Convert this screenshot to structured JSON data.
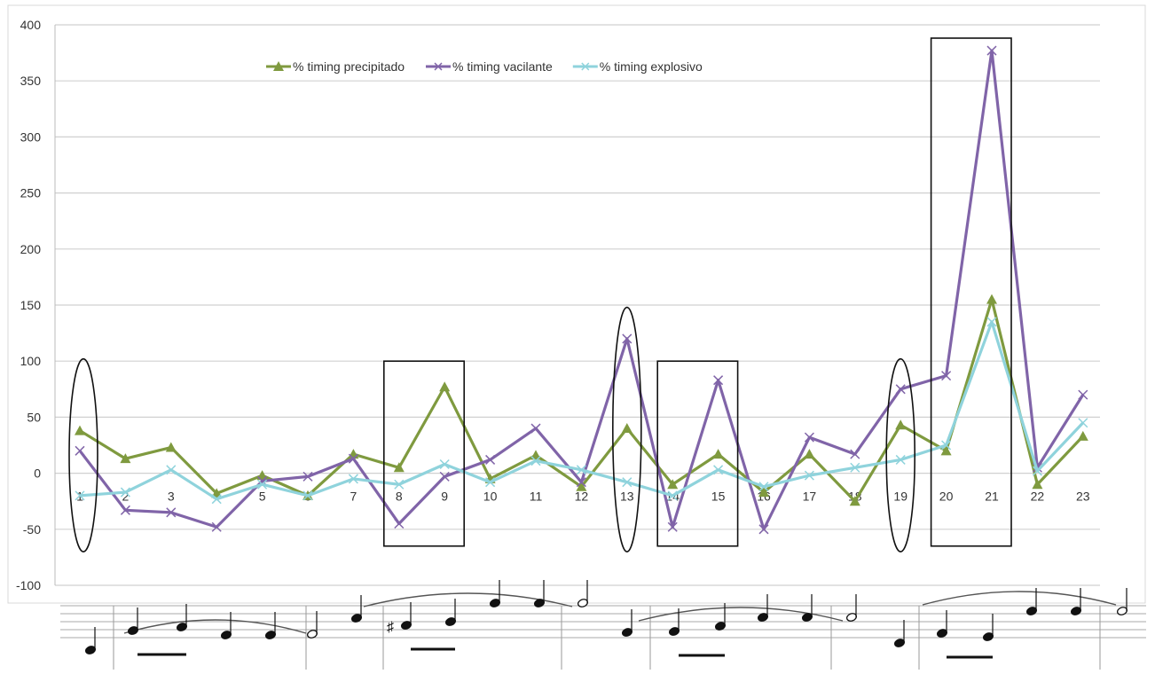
{
  "chart_data": {
    "type": "line",
    "x": [
      "1",
      "2",
      "3",
      "4",
      "5",
      "6",
      "7",
      "8",
      "9",
      "10",
      "11",
      "12",
      "13",
      "14",
      "15",
      "16",
      "17",
      "18",
      "19",
      "20",
      "21",
      "22",
      "23"
    ],
    "ylim": [
      -100,
      400
    ],
    "yticks": [
      "-100",
      "-50",
      "0",
      "50",
      "100",
      "150",
      "200",
      "250",
      "300",
      "350",
      "400"
    ],
    "grid": "horizontal",
    "legend_position": "top",
    "series": [
      {
        "name": "% timing precipitado",
        "color": "#7f9a3f",
        "marker": "triangle",
        "values": [
          38,
          13,
          23,
          -18,
          -2,
          -20,
          17,
          5,
          77,
          -5,
          16,
          -12,
          40,
          -10,
          17,
          -17,
          17,
          -25,
          43,
          20,
          155,
          -10,
          33
        ]
      },
      {
        "name": "% timing vacilante",
        "color": "#8064a8",
        "marker": "x",
        "values": [
          20,
          -33,
          -35,
          -48,
          -7,
          -3,
          13,
          -45,
          -3,
          12,
          40,
          -8,
          120,
          -48,
          83,
          -50,
          32,
          17,
          75,
          87,
          377,
          5,
          70
        ]
      },
      {
        "name": "% timing explosivo",
        "color": "#8fd3dc",
        "marker": "x",
        "values": [
          -20,
          -17,
          3,
          -23,
          -10,
          -20,
          -5,
          -10,
          8,
          -8,
          11,
          3,
          -8,
          -20,
          3,
          -12,
          -2,
          5,
          12,
          25,
          135,
          2,
          45
        ]
      }
    ],
    "highlight_rects": [
      [
        8,
        9
      ],
      [
        14,
        15
      ],
      [
        20,
        21
      ]
    ],
    "highlight_ellipses": [
      1,
      13,
      19
    ]
  },
  "notation": {
    "description": "musical score excerpt aligned under the x axis"
  }
}
